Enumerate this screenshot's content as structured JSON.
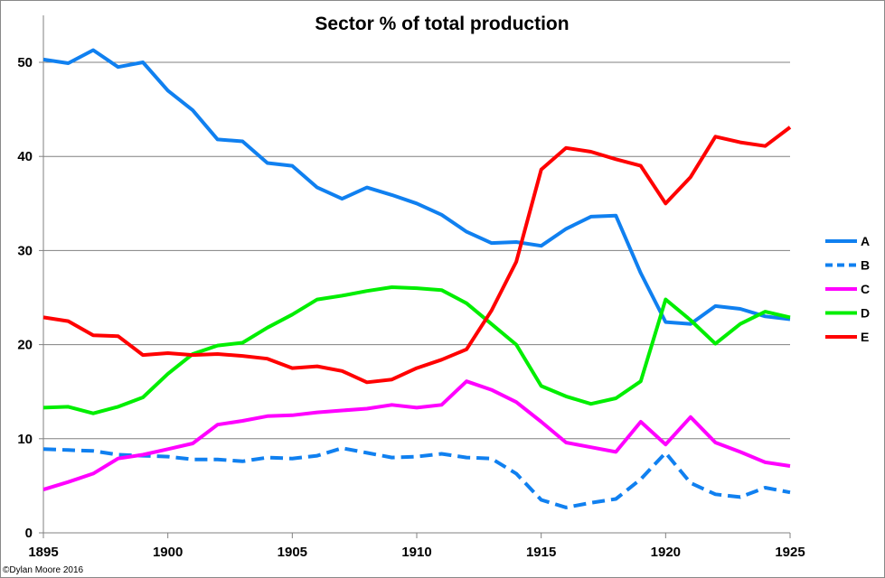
{
  "chart_data": {
    "type": "line",
    "title": "Sector % of total production",
    "xlabel": "",
    "ylabel": "",
    "xlim": [
      1895,
      1925
    ],
    "ylim": [
      0,
      55
    ],
    "x_ticks": [
      1895,
      1900,
      1905,
      1910,
      1915,
      1920,
      1925
    ],
    "y_ticks": [
      0,
      10,
      20,
      30,
      40,
      50
    ],
    "grid": "horizontal",
    "legend_position": "right",
    "credit": "©Dylan Moore 2016",
    "x": [
      1895,
      1896,
      1897,
      1898,
      1899,
      1900,
      1901,
      1902,
      1903,
      1904,
      1905,
      1906,
      1907,
      1908,
      1909,
      1910,
      1911,
      1912,
      1913,
      1914,
      1915,
      1916,
      1917,
      1918,
      1919,
      1920,
      1921,
      1922,
      1923,
      1924,
      1925
    ],
    "series": [
      {
        "name": "A",
        "color": "#1080F0",
        "dash": "solid",
        "values": [
          50.3,
          49.9,
          51.3,
          49.5,
          50.0,
          47.0,
          44.9,
          41.8,
          41.6,
          39.3,
          39.0,
          36.7,
          35.5,
          36.7,
          35.9,
          35.0,
          33.8,
          32.0,
          30.8,
          30.9,
          30.5,
          32.3,
          33.6,
          33.7,
          27.6,
          22.4,
          22.2,
          24.1,
          23.8,
          23.0,
          22.7
        ]
      },
      {
        "name": "B",
        "color": "#1080F0",
        "dash": "dashed",
        "values": [
          8.9,
          8.8,
          8.7,
          8.3,
          8.2,
          8.1,
          7.8,
          7.8,
          7.6,
          8.0,
          7.9,
          8.2,
          9.0,
          8.5,
          8.0,
          8.1,
          8.4,
          8.0,
          7.9,
          6.3,
          3.5,
          2.7,
          3.2,
          3.6,
          5.7,
          8.5,
          5.3,
          4.1,
          3.8,
          4.8,
          4.3
        ]
      },
      {
        "name": "C",
        "color": "#FF00FF",
        "dash": "solid",
        "values": [
          4.6,
          5.4,
          6.3,
          7.9,
          8.3,
          8.9,
          9.5,
          11.5,
          11.9,
          12.4,
          12.5,
          12.8,
          13.0,
          13.2,
          13.6,
          13.3,
          13.6,
          16.1,
          15.2,
          13.9,
          11.8,
          9.6,
          9.1,
          8.6,
          11.8,
          9.4,
          12.3,
          9.6,
          8.6,
          7.5,
          7.1
        ]
      },
      {
        "name": "D",
        "color": "#00EE00",
        "dash": "solid",
        "values": [
          13.3,
          13.4,
          12.7,
          13.4,
          14.4,
          16.9,
          19.0,
          19.9,
          20.2,
          21.8,
          23.2,
          24.8,
          25.2,
          25.7,
          26.1,
          26.0,
          25.8,
          24.4,
          22.2,
          20.0,
          15.6,
          14.5,
          13.7,
          14.3,
          16.1,
          24.8,
          22.6,
          20.1,
          22.2,
          23.5,
          22.9
        ]
      },
      {
        "name": "E",
        "color": "#FF0000",
        "dash": "solid",
        "values": [
          22.9,
          22.5,
          21.0,
          20.9,
          18.9,
          19.1,
          18.9,
          19.0,
          18.8,
          18.5,
          17.5,
          17.7,
          17.2,
          16.0,
          16.3,
          17.5,
          18.4,
          19.5,
          23.6,
          28.8,
          38.6,
          40.9,
          40.5,
          39.7,
          39.0,
          35.0,
          37.8,
          42.1,
          41.5,
          41.1,
          43.1
        ]
      }
    ]
  }
}
